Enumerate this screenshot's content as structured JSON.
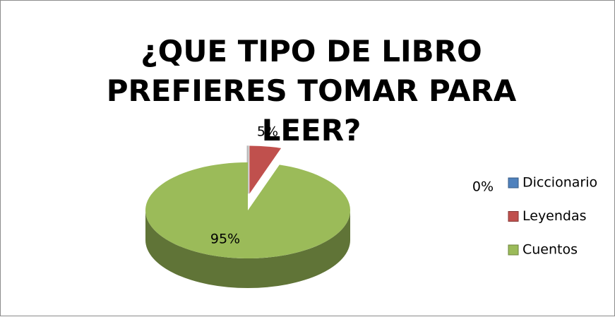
{
  "chart_data": {
    "type": "pie3d",
    "title": "¿QUE TIPO DE LIBRO PREFIERES TOMAR PARA LEER?",
    "categories": [
      "Diccionario",
      "Leyendas",
      "Cuentos"
    ],
    "values": [
      0,
      5,
      95
    ],
    "value_labels": [
      "0%",
      "5%",
      "95%"
    ],
    "colors": [
      "#4f81bd",
      "#c0504d",
      "#9bbb59"
    ],
    "exploded": [
      true,
      true,
      false
    ],
    "legend": "right"
  }
}
